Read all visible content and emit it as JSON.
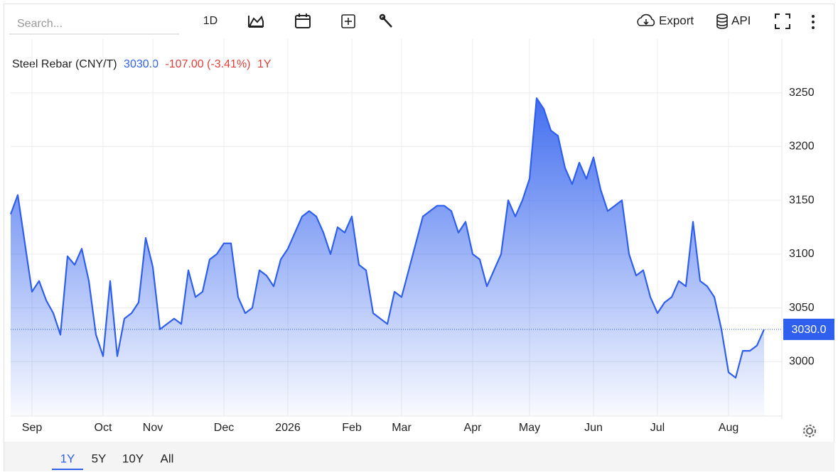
{
  "toolbar": {
    "search_placeholder": "Search...",
    "interval": "1D",
    "export": "Export",
    "api": "API"
  },
  "quote": {
    "price": "3030.0",
    "change": "-107.00 (-3.41%)",
    "period": "1Y"
  },
  "ranges": [
    "1Y",
    "5Y",
    "10Y",
    "All"
  ],
  "chart_data": {
    "type": "area",
    "title": "Steel Rebar (CNY/T)",
    "color": "#2f5fee",
    "grid": true,
    "categories": [
      null,
      null,
      null,
      "Sep",
      null,
      null,
      null,
      null,
      null,
      null,
      null,
      null,
      null,
      "Oct",
      null,
      null,
      null,
      null,
      null,
      null,
      "Nov",
      null,
      null,
      null,
      null,
      null,
      null,
      null,
      null,
      null,
      "Dec",
      null,
      null,
      null,
      null,
      null,
      null,
      null,
      null,
      "2026",
      null,
      null,
      null,
      null,
      null,
      null,
      null,
      null,
      "Feb",
      null,
      null,
      null,
      null,
      null,
      null,
      "Mar",
      null,
      null,
      null,
      null,
      null,
      null,
      null,
      null,
      null,
      "Apr",
      null,
      null,
      null,
      null,
      null,
      null,
      null,
      "May",
      null,
      null,
      null,
      null,
      null,
      null,
      null,
      null,
      "Jun",
      null,
      null,
      null,
      null,
      null,
      null,
      null,
      null,
      "Jul",
      null,
      null,
      null,
      null,
      null,
      null,
      null,
      null,
      null,
      "Aug",
      null,
      null,
      null,
      null,
      null
    ],
    "values": [
      3137,
      3155,
      3110,
      3065,
      3075,
      3057,
      3045,
      3025,
      3098,
      3090,
      3105,
      3075,
      3025,
      3005,
      3075,
      3005,
      3040,
      3045,
      3055,
      3115,
      3088,
      3030,
      3035,
      3040,
      3035,
      3085,
      3060,
      3065,
      3095,
      3100,
      3110,
      3110,
      3060,
      3045,
      3050,
      3085,
      3080,
      3070,
      3095,
      3105,
      3120,
      3135,
      3140,
      3135,
      3120,
      3100,
      3125,
      3120,
      3135,
      3090,
      3085,
      3045,
      3040,
      3035,
      3065,
      3060,
      3085,
      3110,
      3135,
      3140,
      3145,
      3145,
      3140,
      3120,
      3130,
      3100,
      3095,
      3070,
      3085,
      3100,
      3150,
      3135,
      3150,
      3170,
      3245,
      3235,
      3215,
      3210,
      3180,
      3165,
      3185,
      3170,
      3190,
      3160,
      3140,
      3145,
      3150,
      3100,
      3080,
      3085,
      3060,
      3045,
      3055,
      3060,
      3075,
      3070,
      3130,
      3075,
      3070,
      3060,
      3030,
      2990,
      2985,
      3010,
      3010,
      3015,
      3030
    ],
    "ylim": [
      2950,
      3300
    ],
    "yticks": [
      3000,
      3050,
      3100,
      3150,
      3200,
      3250
    ]
  }
}
